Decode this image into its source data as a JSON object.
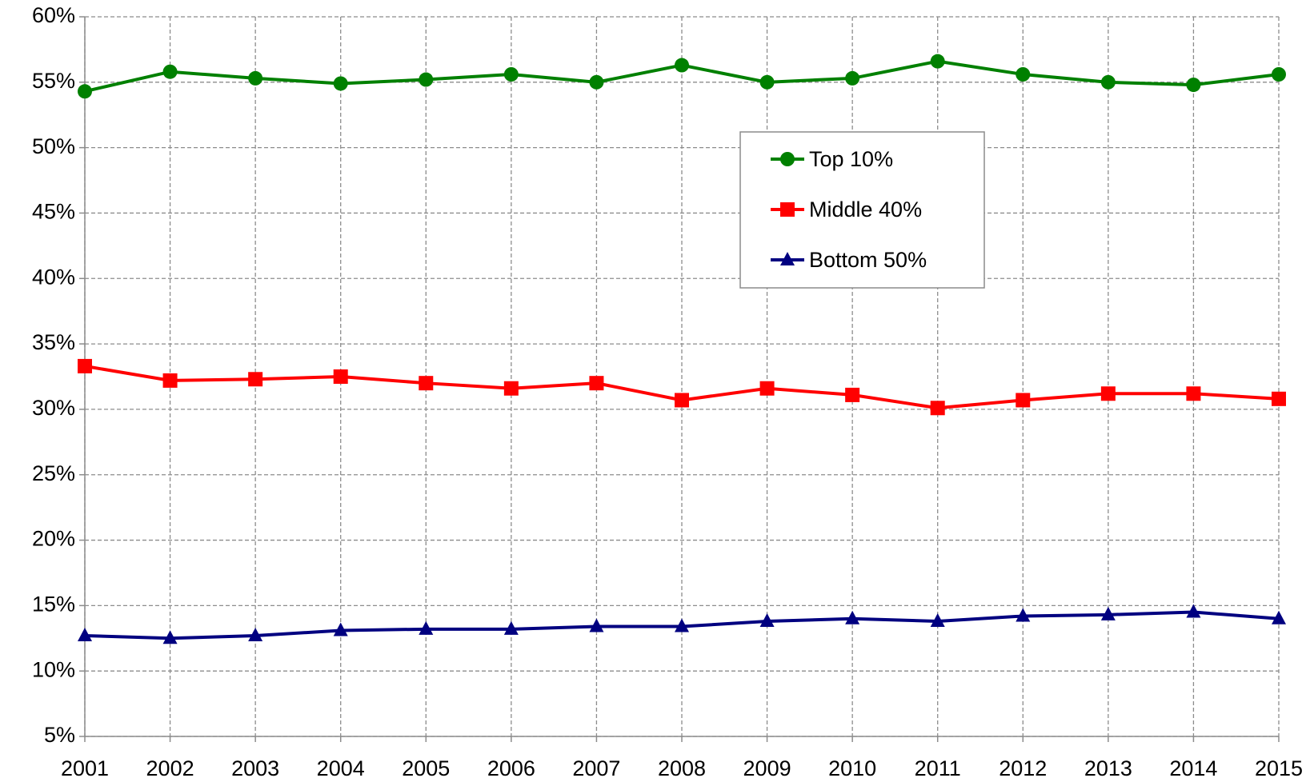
{
  "chart_data": {
    "type": "line",
    "x": [
      2001,
      2002,
      2003,
      2004,
      2005,
      2006,
      2007,
      2008,
      2009,
      2010,
      2011,
      2012,
      2013,
      2014,
      2015
    ],
    "xlim": [
      2001,
      2015
    ],
    "xticks": [
      2001,
      2002,
      2003,
      2004,
      2005,
      2006,
      2007,
      2008,
      2009,
      2010,
      2011,
      2012,
      2013,
      2014,
      2015
    ],
    "ylim": [
      5,
      60
    ],
    "yticks": [
      {
        "value": 5,
        "label": "5%"
      },
      {
        "value": 10,
        "label": "10%"
      },
      {
        "value": 15,
        "label": "15%"
      },
      {
        "value": 20,
        "label": "20%"
      },
      {
        "value": 25,
        "label": "25%"
      },
      {
        "value": 30,
        "label": "30%"
      },
      {
        "value": 35,
        "label": "35%"
      },
      {
        "value": 40,
        "label": "40%"
      },
      {
        "value": 45,
        "label": "45%"
      },
      {
        "value": 50,
        "label": "50%"
      },
      {
        "value": 55,
        "label": "55%"
      },
      {
        "value": 60,
        "label": "60%"
      }
    ],
    "grid": true,
    "legend": "top",
    "series": [
      {
        "name": "Top 10%",
        "color": "#008000",
        "marker": "circle",
        "values": [
          54.3,
          55.8,
          55.3,
          54.9,
          55.2,
          55.6,
          55.0,
          56.3,
          55.0,
          55.3,
          56.6,
          55.6,
          55.0,
          54.8,
          55.6
        ]
      },
      {
        "name": "Middle 40%",
        "color": "#ff0000",
        "marker": "square",
        "values": [
          33.3,
          32.2,
          32.3,
          32.5,
          32.0,
          31.6,
          32.0,
          30.7,
          31.6,
          31.1,
          30.1,
          30.7,
          31.2,
          31.2,
          30.8
        ]
      },
      {
        "name": "Bottom 50%",
        "color": "#000080",
        "marker": "triangle",
        "values": [
          12.7,
          12.5,
          12.7,
          13.1,
          13.2,
          13.2,
          13.4,
          13.4,
          13.8,
          14.0,
          13.8,
          14.2,
          14.3,
          14.5,
          14.0
        ]
      }
    ]
  }
}
